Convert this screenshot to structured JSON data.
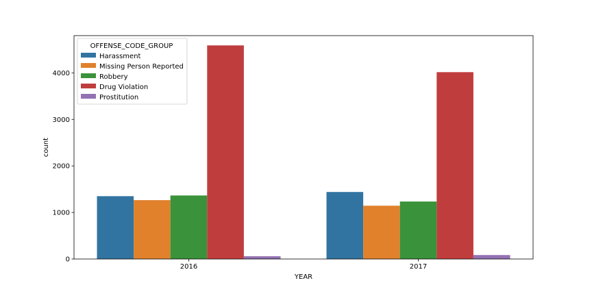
{
  "chart_data": {
    "type": "bar",
    "categories": [
      "2016",
      "2017"
    ],
    "xlabel": "YEAR",
    "ylabel": "count",
    "ylim": [
      0,
      4800
    ],
    "yticks": [
      0,
      1000,
      2000,
      3000,
      4000
    ],
    "grid": false,
    "legend": {
      "title": "OFFENSE_CODE_GROUP",
      "placement": "top-left"
    },
    "series": [
      {
        "name": "Harassment",
        "color": "#3274a1",
        "values": [
          1350,
          1440
        ]
      },
      {
        "name": "Missing Person Reported",
        "color": "#e1812c",
        "values": [
          1265,
          1145
        ]
      },
      {
        "name": "Robbery",
        "color": "#3a923a",
        "values": [
          1365,
          1235
        ]
      },
      {
        "name": "Drug Violation",
        "color": "#c03d3e",
        "values": [
          4590,
          4015
        ]
      },
      {
        "name": "Prostitution",
        "color": "#9372b2",
        "values": [
          60,
          85
        ]
      }
    ]
  }
}
